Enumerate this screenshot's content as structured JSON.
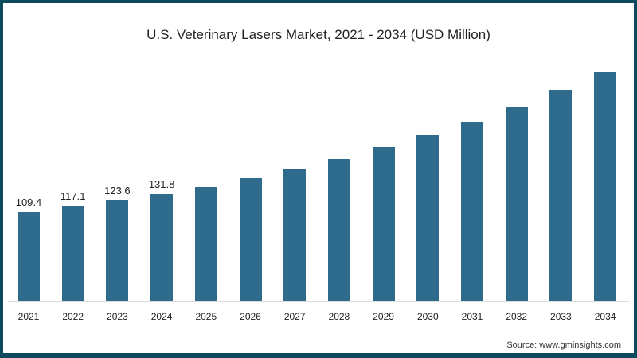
{
  "title": "U.S. Veterinary Lasers Market, 2021 - 2034 (USD Million)",
  "source": "Source: www.gminsights.com",
  "colors": {
    "bar": "#2e6b8c",
    "frame": "#0d4a5e"
  },
  "chart_data": {
    "type": "bar",
    "title": "U.S. Veterinary Lasers Market, 2021 - 2034 (USD Million)",
    "xlabel": "",
    "ylabel": "USD Million",
    "categories": [
      "2021",
      "2022",
      "2023",
      "2024",
      "2025",
      "2026",
      "2027",
      "2028",
      "2029",
      "2030",
      "2031",
      "2032",
      "2033",
      "2034"
    ],
    "values": [
      109.4,
      117.1,
      123.6,
      131.8,
      140.7,
      151.6,
      163.4,
      175.2,
      190.0,
      204.7,
      221.5,
      240.2,
      260.8,
      283.5
    ],
    "data_labels": [
      "109.4",
      "117.1",
      "123.6",
      "131.8",
      "",
      "",
      "",
      "",
      "",
      "",
      "",
      "",
      "",
      ""
    ],
    "grid": false,
    "legend": null,
    "ylim": [
      0,
      300
    ]
  }
}
